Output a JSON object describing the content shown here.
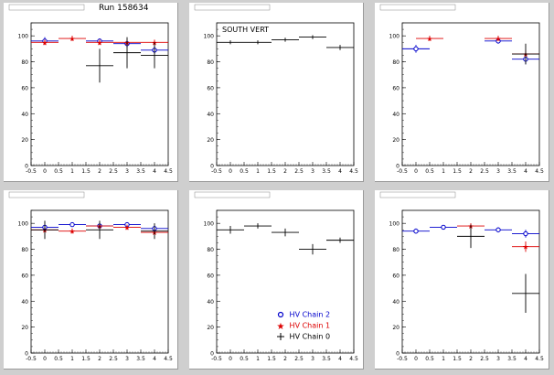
{
  "page_title": "Run 158634",
  "legend": {
    "entries": [
      {
        "label": "HV Chain 2",
        "color": "#0000cc",
        "marker": "circle"
      },
      {
        "label": "HV Chain 1",
        "color": "#dd0000",
        "marker": "star"
      },
      {
        "label": "HV Chain 0",
        "color": "#000000",
        "marker": "cross"
      }
    ]
  },
  "chart_data": [
    {
      "type": "scatter",
      "title": "",
      "panel_label": "",
      "xlim": [
        -0.5,
        4.5
      ],
      "ylim": [
        0,
        110
      ],
      "xticks": [
        "-0.5",
        "0",
        "0.5",
        "1",
        "1.5",
        "2",
        "2.5",
        "3",
        "3.5",
        "4",
        "4.5"
      ],
      "yticks": [
        "0",
        "20",
        "40",
        "60",
        "80",
        "100"
      ],
      "series": [
        {
          "name": "HV Chain 2",
          "color": "#0000cc",
          "marker": "circle",
          "points": [
            {
              "x": 0,
              "y": 96,
              "xerr": 0.5,
              "yerr": 3
            },
            {
              "x": 2,
              "y": 96,
              "xerr": 0.5,
              "yerr": 2
            },
            {
              "x": 3,
              "y": 94,
              "xerr": 0.5,
              "yerr": 3
            },
            {
              "x": 4,
              "y": 89,
              "xerr": 0.5,
              "yerr": 3
            }
          ]
        },
        {
          "name": "HV Chain 1",
          "color": "#dd0000",
          "marker": "star",
          "points": [
            {
              "x": 0,
              "y": 95,
              "xerr": 0.5,
              "yerr": 2
            },
            {
              "x": 1,
              "y": 98,
              "xerr": 0.5,
              "yerr": 2
            },
            {
              "x": 2,
              "y": 95,
              "xerr": 0.5,
              "yerr": 2
            },
            {
              "x": 3,
              "y": 95,
              "xerr": 0.5,
              "yerr": 2
            },
            {
              "x": 4,
              "y": 95,
              "xerr": 0.5,
              "yerr": 2
            }
          ]
        },
        {
          "name": "HV Chain 0",
          "color": "#000000",
          "marker": "cross",
          "points": [
            {
              "x": 2,
              "y": 77,
              "xerr": 0.5,
              "yerr": 13
            },
            {
              "x": 3,
              "y": 87,
              "xerr": 0.5,
              "yerr": 12
            },
            {
              "x": 4,
              "y": 85,
              "xerr": 0.5,
              "yerr": 10
            }
          ]
        }
      ]
    },
    {
      "type": "scatter",
      "title": "",
      "panel_label": "SOUTH VERT",
      "xlim": [
        -0.5,
        4.5
      ],
      "ylim": [
        0,
        110
      ],
      "xticks": [
        "-0.5",
        "0",
        "0.5",
        "1",
        "1.5",
        "2",
        "2.5",
        "3",
        "3.5",
        "4",
        "4.5"
      ],
      "yticks": [
        "0",
        "20",
        "40",
        "60",
        "80",
        "100"
      ],
      "series": [
        {
          "name": "HV Chain 0",
          "color": "#000000",
          "marker": "cross",
          "points": [
            {
              "x": 0,
              "y": 95,
              "xerr": 0.5,
              "yerr": 1.5
            },
            {
              "x": 1,
              "y": 95,
              "xerr": 0.5,
              "yerr": 1.5
            },
            {
              "x": 2,
              "y": 97,
              "xerr": 0.5,
              "yerr": 1.5
            },
            {
              "x": 3,
              "y": 99,
              "xerr": 0.5,
              "yerr": 1.5
            },
            {
              "x": 4,
              "y": 91,
              "xerr": 0.5,
              "yerr": 2
            }
          ]
        }
      ]
    },
    {
      "type": "scatter",
      "title": "",
      "panel_label": "",
      "xlim": [
        -0.5,
        4.5
      ],
      "ylim": [
        0,
        110
      ],
      "xticks": [
        "-0.5",
        "0",
        "0.5",
        "1",
        "1.5",
        "2",
        "2.5",
        "3",
        "3.5",
        "4",
        "4.5"
      ],
      "yticks": [
        "0",
        "20",
        "40",
        "60",
        "80",
        "100"
      ],
      "series": [
        {
          "name": "HV Chain 2",
          "color": "#0000cc",
          "marker": "circle",
          "points": [
            {
              "x": 0,
              "y": 90,
              "xerr": 0.5,
              "yerr": 3
            },
            {
              "x": 3,
              "y": 96,
              "xerr": 0.5,
              "yerr": 2
            },
            {
              "x": 4,
              "y": 82,
              "xerr": 0.5,
              "yerr": 4
            }
          ]
        },
        {
          "name": "HV Chain 1",
          "color": "#dd0000",
          "marker": "star",
          "points": [
            {
              "x": 0.5,
              "y": 98,
              "xerr": 0.5,
              "yerr": 2
            },
            {
              "x": 3,
              "y": 98,
              "xerr": 0.5,
              "yerr": 2
            },
            {
              "x": 4,
              "y": 86,
              "xerr": 0.5,
              "yerr": 3
            }
          ]
        },
        {
          "name": "HV Chain 0",
          "color": "#000000",
          "marker": "cross",
          "points": [
            {
              "x": 4,
              "y": 86,
              "xerr": 0.5,
              "yerr": 8
            }
          ]
        }
      ]
    },
    {
      "type": "scatter",
      "title": "",
      "panel_label": "",
      "xlim": [
        -0.5,
        4.5
      ],
      "ylim": [
        0,
        110
      ],
      "xticks": [
        "-0.5",
        "0",
        "0.5",
        "1",
        "1.5",
        "2",
        "2.5",
        "3",
        "3.5",
        "4",
        "4.5"
      ],
      "yticks": [
        "0",
        "20",
        "40",
        "60",
        "80",
        "100"
      ],
      "series": [
        {
          "name": "HV Chain 2",
          "color": "#0000cc",
          "marker": "circle",
          "points": [
            {
              "x": 0,
              "y": 97,
              "xerr": 0.5,
              "yerr": 2
            },
            {
              "x": 1,
              "y": 99,
              "xerr": 0.5,
              "yerr": 1.5
            },
            {
              "x": 2,
              "y": 98,
              "xerr": 0.5,
              "yerr": 1.5
            },
            {
              "x": 3,
              "y": 99,
              "xerr": 0.5,
              "yerr": 1.5
            },
            {
              "x": 4,
              "y": 96,
              "xerr": 0.5,
              "yerr": 2
            }
          ]
        },
        {
          "name": "HV Chain 1",
          "color": "#dd0000",
          "marker": "star",
          "points": [
            {
              "x": 0,
              "y": 95,
              "xerr": 0.5,
              "yerr": 2
            },
            {
              "x": 1,
              "y": 94,
              "xerr": 0.5,
              "yerr": 2
            },
            {
              "x": 2,
              "y": 98,
              "xerr": 0.5,
              "yerr": 2
            },
            {
              "x": 3,
              "y": 97,
              "xerr": 0.5,
              "yerr": 2
            },
            {
              "x": 4,
              "y": 93,
              "xerr": 0.5,
              "yerr": 2
            }
          ]
        },
        {
          "name": "HV Chain 0",
          "color": "#000000",
          "marker": "cross",
          "points": [
            {
              "x": 0,
              "y": 95,
              "xerr": 0.5,
              "yerr": 7
            },
            {
              "x": 2,
              "y": 95,
              "xerr": 0.5,
              "yerr": 7
            },
            {
              "x": 4,
              "y": 94,
              "xerr": 0.5,
              "yerr": 6
            }
          ]
        }
      ]
    },
    {
      "type": "scatter",
      "title": "",
      "panel_label": "",
      "xlim": [
        -0.5,
        4.5
      ],
      "ylim": [
        0,
        110
      ],
      "xticks": [
        "-0.5",
        "0",
        "0.5",
        "1",
        "1.5",
        "2",
        "2.5",
        "3",
        "3.5",
        "4",
        "4.5"
      ],
      "yticks": [
        "0",
        "20",
        "40",
        "60",
        "80",
        "100"
      ],
      "series": [
        {
          "name": "HV Chain 0",
          "color": "#000000",
          "marker": "cross",
          "points": [
            {
              "x": 0,
              "y": 95,
              "xerr": 0.5,
              "yerr": 3
            },
            {
              "x": 1,
              "y": 98,
              "xerr": 0.5,
              "yerr": 2
            },
            {
              "x": 2,
              "y": 93,
              "xerr": 0.5,
              "yerr": 3
            },
            {
              "x": 3,
              "y": 80,
              "xerr": 0.5,
              "yerr": 4
            },
            {
              "x": 4,
              "y": 87,
              "xerr": 0.5,
              "yerr": 2
            }
          ]
        }
      ]
    },
    {
      "type": "scatter",
      "title": "",
      "panel_label": "",
      "xlim": [
        -0.5,
        4.5
      ],
      "ylim": [
        0,
        110
      ],
      "xticks": [
        "-0.5",
        "0",
        "0.5",
        "1",
        "1.5",
        "2",
        "2.5",
        "3",
        "3.5",
        "4",
        "4.5"
      ],
      "yticks": [
        "0",
        "20",
        "40",
        "60",
        "80",
        "100"
      ],
      "series": [
        {
          "name": "HV Chain 2",
          "color": "#0000cc",
          "marker": "circle",
          "points": [
            {
              "x": 0,
              "y": 94,
              "xerr": 0.5,
              "yerr": 2
            },
            {
              "x": 1,
              "y": 97,
              "xerr": 0.5,
              "yerr": 1.5
            },
            {
              "x": 3,
              "y": 95,
              "xerr": 0.5,
              "yerr": 2
            },
            {
              "x": 4,
              "y": 92,
              "xerr": 0.5,
              "yerr": 3
            }
          ]
        },
        {
          "name": "HV Chain 1",
          "color": "#dd0000",
          "marker": "star",
          "points": [
            {
              "x": 2,
              "y": 98,
              "xerr": 0.5,
              "yerr": 2
            },
            {
              "x": 4,
              "y": 82,
              "xerr": 0.5,
              "yerr": 4
            }
          ]
        },
        {
          "name": "HV Chain 0",
          "color": "#000000",
          "marker": "cross",
          "points": [
            {
              "x": 2,
              "y": 90,
              "xerr": 0.5,
              "yerr": 9
            },
            {
              "x": 4,
              "y": 46,
              "xerr": 0.5,
              "yerr": 15
            }
          ]
        }
      ]
    }
  ]
}
